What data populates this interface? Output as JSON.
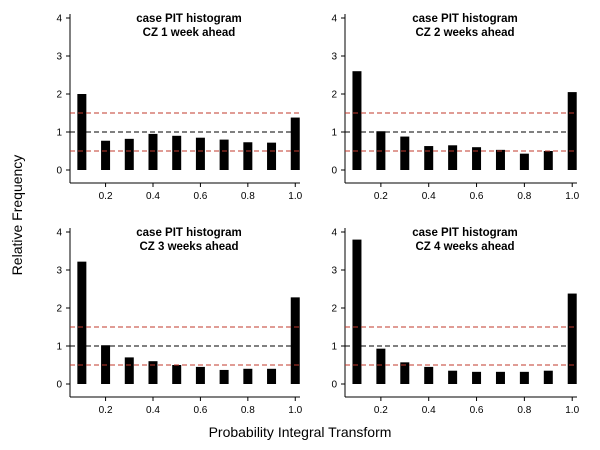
{
  "figure": {
    "xlabel": "Probability Integral Transform",
    "ylabel": "Relative Frequency"
  },
  "chart_data": [
    {
      "type": "bar",
      "title": "case PIT histogram",
      "subtitle": "CZ 1 week ahead",
      "x": [
        0.1,
        0.2,
        0.3,
        0.4,
        0.5,
        0.6,
        0.7,
        0.8,
        0.9,
        1.0
      ],
      "values": [
        2.0,
        0.77,
        0.82,
        0.95,
        0.9,
        0.85,
        0.8,
        0.73,
        0.72,
        1.38
      ],
      "xticks": [
        "0.2",
        "0.4",
        "0.6",
        "0.8",
        "1.0"
      ],
      "yticks": [
        "0",
        "1",
        "2",
        "3",
        "4"
      ],
      "xlim": [
        0.05,
        1.02
      ],
      "ylim": [
        0,
        4
      ],
      "reference_lines": [
        {
          "y": 1.0,
          "color": "#000000",
          "style": "dashed"
        },
        {
          "y": 1.5,
          "color": "#c0392b",
          "style": "dashed"
        },
        {
          "y": 0.5,
          "color": "#c0392b",
          "style": "dashed"
        }
      ]
    },
    {
      "type": "bar",
      "title": "case PIT histogram",
      "subtitle": "CZ 2 weeks ahead",
      "x": [
        0.1,
        0.2,
        0.3,
        0.4,
        0.5,
        0.6,
        0.7,
        0.8,
        0.9,
        1.0
      ],
      "values": [
        2.6,
        1.02,
        0.88,
        0.63,
        0.65,
        0.6,
        0.53,
        0.43,
        0.5,
        2.05
      ],
      "xticks": [
        "0.2",
        "0.4",
        "0.6",
        "0.8",
        "1.0"
      ],
      "yticks": [
        "0",
        "1",
        "2",
        "3",
        "4"
      ],
      "xlim": [
        0.05,
        1.02
      ],
      "ylim": [
        0,
        4
      ],
      "reference_lines": [
        {
          "y": 1.0,
          "color": "#000000",
          "style": "dashed"
        },
        {
          "y": 1.5,
          "color": "#c0392b",
          "style": "dashed"
        },
        {
          "y": 0.5,
          "color": "#c0392b",
          "style": "dashed"
        }
      ]
    },
    {
      "type": "bar",
      "title": "case PIT histogram",
      "subtitle": "CZ 3 weeks ahead",
      "x": [
        0.1,
        0.2,
        0.3,
        0.4,
        0.5,
        0.6,
        0.7,
        0.8,
        0.9,
        1.0
      ],
      "values": [
        3.22,
        1.02,
        0.7,
        0.6,
        0.5,
        0.45,
        0.37,
        0.4,
        0.4,
        2.28
      ],
      "xticks": [
        "0.2",
        "0.4",
        "0.6",
        "0.8",
        "1.0"
      ],
      "yticks": [
        "0",
        "1",
        "2",
        "3",
        "4"
      ],
      "xlim": [
        0.05,
        1.02
      ],
      "ylim": [
        0,
        4
      ],
      "reference_lines": [
        {
          "y": 1.0,
          "color": "#000000",
          "style": "dashed"
        },
        {
          "y": 1.5,
          "color": "#c0392b",
          "style": "dashed"
        },
        {
          "y": 0.5,
          "color": "#c0392b",
          "style": "dashed"
        }
      ]
    },
    {
      "type": "bar",
      "title": "case PIT histogram",
      "subtitle": "CZ 4 weeks ahead",
      "x": [
        0.1,
        0.2,
        0.3,
        0.4,
        0.5,
        0.6,
        0.7,
        0.8,
        0.9,
        1.0
      ],
      "values": [
        3.8,
        0.93,
        0.57,
        0.45,
        0.35,
        0.32,
        0.32,
        0.32,
        0.35,
        2.38
      ],
      "xticks": [
        "0.2",
        "0.4",
        "0.6",
        "0.8",
        "1.0"
      ],
      "yticks": [
        "0",
        "1",
        "2",
        "3",
        "4"
      ],
      "xlim": [
        0.05,
        1.02
      ],
      "ylim": [
        0,
        4
      ],
      "reference_lines": [
        {
          "y": 1.0,
          "color": "#000000",
          "style": "dashed"
        },
        {
          "y": 1.5,
          "color": "#c0392b",
          "style": "dashed"
        },
        {
          "y": 0.5,
          "color": "#c0392b",
          "style": "dashed"
        }
      ]
    }
  ]
}
